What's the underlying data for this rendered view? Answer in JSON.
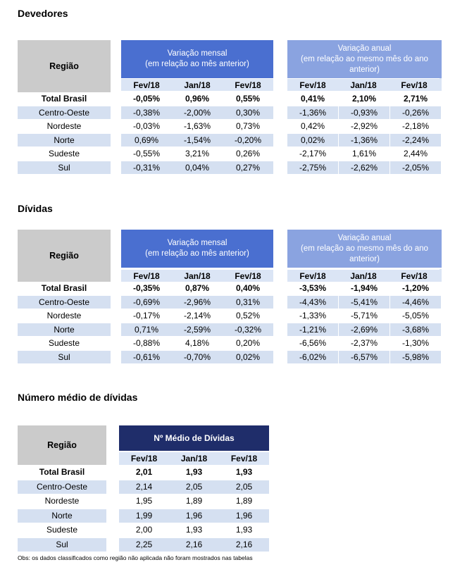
{
  "sections": [
    {
      "title": "Devedores",
      "region_header": "Região",
      "group1": {
        "line1": "Variação mensal",
        "line2": "(em relação ao mês anterior)"
      },
      "group2": {
        "line1": "Variação anual",
        "line2": "(em relação ao mesmo mês do ano",
        "line3": "anterior)"
      },
      "subheaders1": [
        "Fev/18",
        "Jan/18",
        "Fev/18"
      ],
      "subheaders2": [
        "Fev/18",
        "Jan/18",
        "Fev/18"
      ],
      "rows": [
        {
          "region": "Total Brasil",
          "values": [
            "-0,05%",
            "0,96%",
            "0,55%",
            "0,41%",
            "2,10%",
            "2,71%"
          ]
        },
        {
          "region": "Centro-Oeste",
          "values": [
            "-0,38%",
            "-2,00%",
            "0,30%",
            "-1,36%",
            "-0,93%",
            "-0,26%"
          ]
        },
        {
          "region": "Nordeste",
          "values": [
            "-0,03%",
            "-1,63%",
            "0,73%",
            "0,42%",
            "-2,92%",
            "-2,18%"
          ]
        },
        {
          "region": "Norte",
          "values": [
            "0,69%",
            "-1,54%",
            "-0,20%",
            "0,02%",
            "-1,36%",
            "-2,24%"
          ]
        },
        {
          "region": "Sudeste",
          "values": [
            "-0,55%",
            "3,21%",
            "0,26%",
            "-2,17%",
            "1,61%",
            "2,44%"
          ]
        },
        {
          "region": "Sul",
          "values": [
            "-0,31%",
            "0,04%",
            "0,27%",
            "-2,75%",
            "-2,62%",
            "-2,05%"
          ]
        }
      ]
    },
    {
      "title": "Dívidas",
      "region_header": "Região",
      "group1": {
        "line1": "Variação mensal",
        "line2": "(em relação ao mês anterior)"
      },
      "group2": {
        "line1": "Variação anual",
        "line2": "(em relação ao mesmo mês do ano",
        "line3": "anterior)"
      },
      "subheaders1": [
        "Fev/18",
        "Jan/18",
        "Fev/18"
      ],
      "subheaders2": [
        "Fev/18",
        "Jan/18",
        "Fev/18"
      ],
      "rows": [
        {
          "region": "Total Brasil",
          "values": [
            "-0,35%",
            "0,87%",
            "0,40%",
            "-3,53%",
            "-1,94%",
            "-1,20%"
          ]
        },
        {
          "region": "Centro-Oeste",
          "values": [
            "-0,69%",
            "-2,96%",
            "0,31%",
            "-4,43%",
            "-5,41%",
            "-4,46%"
          ]
        },
        {
          "region": "Nordeste",
          "values": [
            "-0,17%",
            "-2,14%",
            "0,52%",
            "-1,33%",
            "-5,71%",
            "-5,05%"
          ]
        },
        {
          "region": "Norte",
          "values": [
            "0,71%",
            "-2,59%",
            "-0,32%",
            "-1,21%",
            "-2,69%",
            "-3,68%"
          ]
        },
        {
          "region": "Sudeste",
          "values": [
            "-0,88%",
            "4,18%",
            "0,20%",
            "-6,56%",
            "-2,37%",
            "-1,30%"
          ]
        },
        {
          "region": "Sul",
          "values": [
            "-0,61%",
            "-0,70%",
            "0,02%",
            "-6,02%",
            "-6,57%",
            "-5,98%"
          ]
        }
      ]
    },
    {
      "title": "Número médio de dívidas",
      "region_header": "Região",
      "group1": {
        "line1": "Nº Médio de Dívidas"
      },
      "subheaders1": [
        "Fev/18",
        "Jan/18",
        "Fev/18"
      ],
      "rows": [
        {
          "region": "Total Brasil",
          "values": [
            "2,01",
            "1,93",
            "1,93"
          ]
        },
        {
          "region": "Centro-Oeste",
          "values": [
            "2,14",
            "2,05",
            "2,05"
          ]
        },
        {
          "region": "Nordeste",
          "values": [
            "1,95",
            "1,89",
            "1,89"
          ]
        },
        {
          "region": "Norte",
          "values": [
            "1,99",
            "1,96",
            "1,96"
          ]
        },
        {
          "region": "Sudeste",
          "values": [
            "2,00",
            "1,93",
            "1,93"
          ]
        },
        {
          "region": "Sul",
          "values": [
            "2,25",
            "2,16",
            "2,16"
          ]
        }
      ]
    }
  ],
  "note": "Obs: os dados classificados como região não aplicada não foram mostrados nas tabelas",
  "colors": {
    "region_header": "#cbcbcb",
    "monthly_header": "#4a6fd0",
    "annual_header": "#8aa3e0",
    "avg_header": "#1f2d6a",
    "row_shade": "#d5e0f1"
  }
}
